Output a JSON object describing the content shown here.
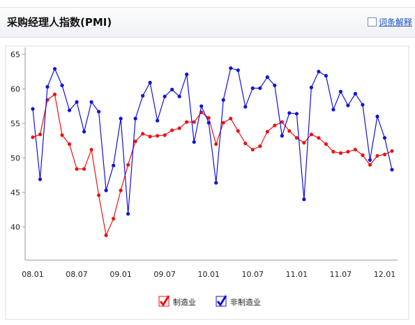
{
  "header": {
    "title": "采购经理人指数(PMI)",
    "link": "词条解释"
  },
  "chart_data": {
    "type": "line",
    "categories": [
      "08.01",
      null,
      null,
      null,
      null,
      null,
      "08.07",
      null,
      null,
      null,
      null,
      null,
      "09.01",
      null,
      null,
      null,
      null,
      null,
      "09.07",
      null,
      null,
      null,
      null,
      null,
      "10.01",
      null,
      null,
      null,
      null,
      null,
      "10.07",
      null,
      null,
      null,
      null,
      null,
      "11.01",
      null,
      null,
      null,
      null,
      null,
      "11.07",
      null,
      null,
      null,
      null,
      null,
      "12.01",
      null
    ],
    "series": [
      {
        "name": "制造业",
        "color": "#ee1111",
        "values": [
          53.0,
          53.4,
          58.4,
          59.2,
          53.3,
          52.0,
          48.4,
          48.4,
          51.2,
          44.6,
          38.8,
          41.2,
          45.3,
          49.0,
          52.4,
          53.5,
          53.1,
          53.2,
          53.3,
          54.0,
          54.3,
          55.2,
          55.2,
          56.6,
          55.8,
          52.0,
          55.1,
          55.7,
          53.9,
          52.1,
          51.2,
          51.7,
          53.8,
          54.7,
          55.2,
          53.9,
          52.9,
          52.2,
          53.4,
          52.9,
          52.0,
          50.9,
          50.7,
          50.9,
          51.2,
          50.4,
          49.0,
          50.3,
          50.5,
          51.0
        ]
      },
      {
        "name": "非制造业",
        "color": "#1111dd",
        "values": [
          57.1,
          46.9,
          60.3,
          62.9,
          60.5,
          56.9,
          58.1,
          53.8,
          58.1,
          56.7,
          45.3,
          48.9,
          55.7,
          41.9,
          55.7,
          59.0,
          60.9,
          55.4,
          58.9,
          59.9,
          58.9,
          62.1,
          52.3,
          57.5,
          55.1,
          46.4,
          58.4,
          63.0,
          62.7,
          57.4,
          60.1,
          60.1,
          61.7,
          60.5,
          53.2,
          56.5,
          56.4,
          44.0,
          60.2,
          62.5,
          61.9,
          57.0,
          59.6,
          57.6,
          59.3,
          57.7,
          49.7,
          56.0,
          52.9,
          48.3
        ]
      }
    ],
    "ylim": [
      35.2,
      66
    ],
    "yticks": [
      40,
      45,
      50,
      55,
      60,
      65
    ],
    "grid": false
  }
}
